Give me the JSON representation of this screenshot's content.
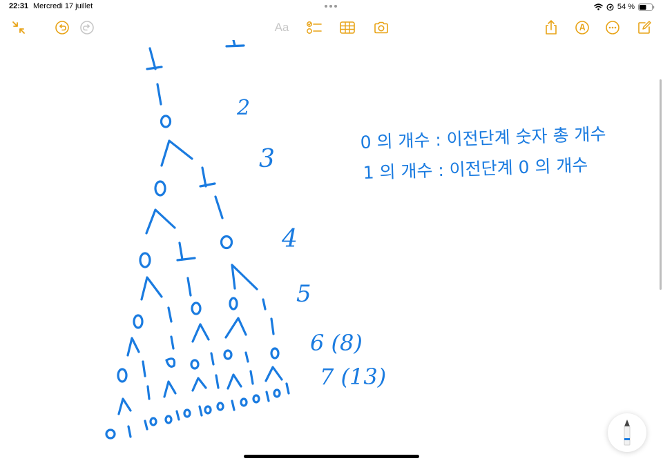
{
  "status_bar": {
    "time": "22:31",
    "date": "Mercredi 17 juillet",
    "battery_percent": "54 %",
    "battery_level": 0.54,
    "icons": [
      "wifi-icon",
      "location-icon",
      "battery-icon"
    ]
  },
  "toolbar": {
    "format_label": "Aa",
    "left_tools": [
      "collapse-icon",
      "undo-icon",
      "redo-icon"
    ],
    "center_tools": [
      "text-format-icon",
      "checklist-icon",
      "table-icon",
      "camera-icon"
    ],
    "right_tools": [
      "share-icon",
      "markup-icon",
      "more-icon",
      "compose-icon"
    ]
  },
  "colors": {
    "accent": "#e8a317",
    "ink": "#1a7be0",
    "inactive": "#c7c7c7"
  },
  "notes": {
    "tree_level_numbers": [
      "2",
      "3",
      "4",
      "5",
      "6 (8)",
      "7 (13)"
    ],
    "rule_zero": "0 의 개수 : 이전단계 숫자 총 개수",
    "rule_one": "1 의 개수 : 이전단계 0 의 개수"
  }
}
